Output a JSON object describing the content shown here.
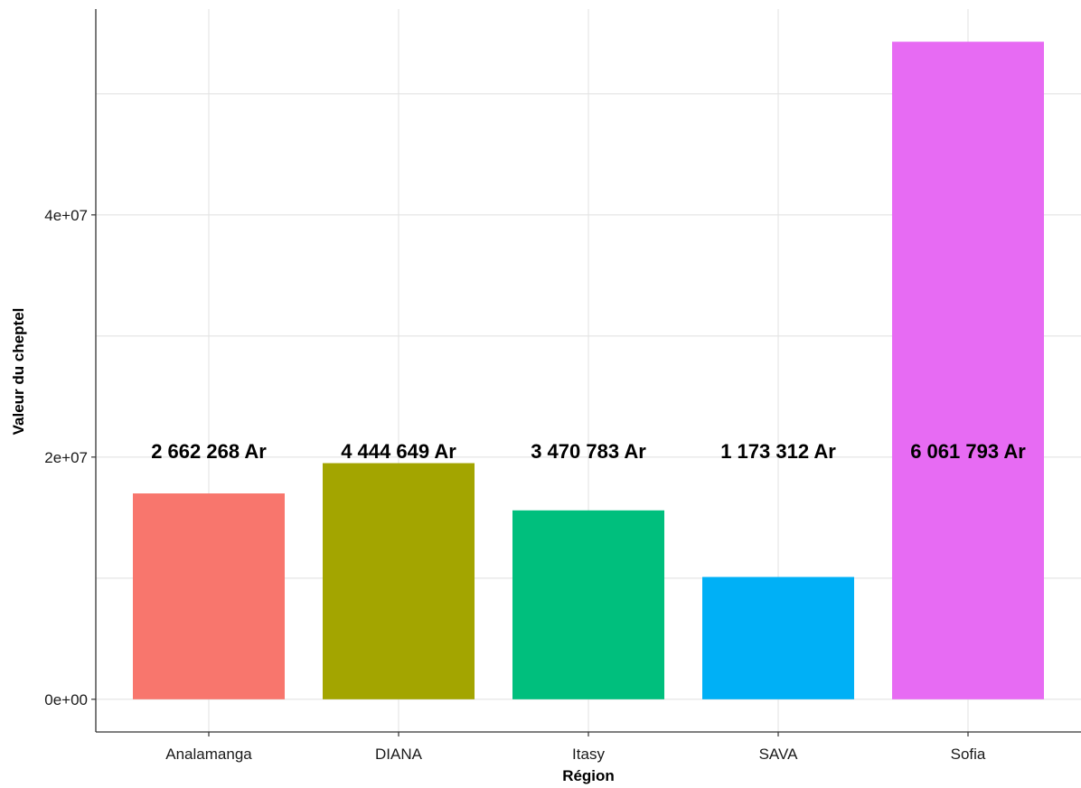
{
  "chart_data": {
    "type": "bar",
    "categories": [
      "Analamanga",
      "DIANA",
      "Itasy",
      "SAVA",
      "Sofia"
    ],
    "values": [
      17000000,
      19500000,
      15600000,
      10100000,
      54300000
    ],
    "data_labels": [
      "2 662 268 Ar",
      "4 444 649 Ar",
      "3 470 783 Ar",
      "1 173 312 Ar",
      "6 061 793 Ar"
    ],
    "label_y": 20500000,
    "colors": [
      "#F8766D",
      "#A3A500",
      "#00BF7D",
      "#00B0F6",
      "#E76BF3"
    ],
    "xlabel": "Région",
    "ylabel": "Valeur du cheptel",
    "ylim": [
      -2700000,
      57000000
    ],
    "yticks": [
      0,
      20000000,
      40000000
    ],
    "ytick_labels": [
      "0e+00",
      "2e+07",
      "4e+07"
    ],
    "grid": true
  }
}
